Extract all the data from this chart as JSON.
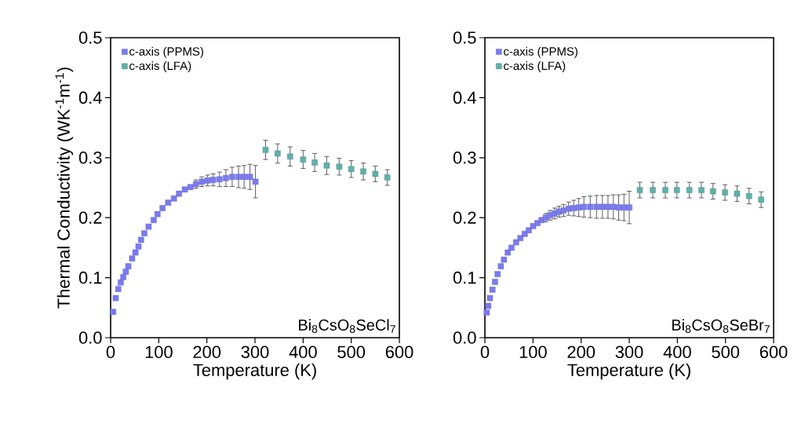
{
  "chart_data": [
    {
      "type": "scatter",
      "xlabel": "Temperature (K)",
      "ylabel": "Thermal Conductivity (WK$^{-1}$m$^{-1}$)",
      "xlim": [
        0,
        600
      ],
      "ylim": [
        0,
        0.5
      ],
      "xticks": [
        0,
        100,
        200,
        300,
        400,
        500,
        600
      ],
      "yticks": [
        {
          "value": 0,
          "label": "0.0"
        },
        0.1,
        0.2,
        0.3,
        0.4,
        0.5
      ],
      "marker": "square",
      "legend": "top left",
      "annotations": [
        "Bi$_{8}$CsO$_{8}$SeCl$_{7}$"
      ],
      "series": [
        {
          "name": "c-axis (PPMS)",
          "color": "#7b7bf0",
          "x": [
            5.3,
            10.5,
            15.8,
            21,
            26.3,
            31.6,
            36.8,
            44.7,
            51.6,
            57.9,
            63.2,
            70,
            78.9,
            89.5,
            97.4,
            107.9,
            119.5,
            131.6,
            142.1,
            154.2,
            165.8,
            177.4,
            189.5,
            201.6,
            213.2,
            226.3,
            239.5,
            252.6,
            265.8,
            277.4,
            289.5,
            301
          ],
          "values": [
            0.043,
            0.066,
            0.081,
            0.092,
            0.101,
            0.11,
            0.119,
            0.132,
            0.142,
            0.152,
            0.163,
            0.174,
            0.185,
            0.196,
            0.206,
            0.216,
            0.225,
            0.232,
            0.24,
            0.247,
            0.251,
            0.256,
            0.26,
            0.262,
            0.263,
            0.264,
            0.266,
            0.268,
            0.268,
            0.268,
            0.268,
            0.26
          ],
          "errors": [
            null,
            null,
            null,
            null,
            null,
            null,
            null,
            null,
            null,
            null,
            null,
            null,
            null,
            null,
            null,
            null,
            null,
            null,
            null,
            null,
            null,
            0.007,
            0.008,
            0.009,
            0.01,
            0.012,
            0.014,
            0.016,
            0.018,
            0.019,
            0.021,
            0.027
          ]
        },
        {
          "name": "c-axis (LFA)",
          "color": "#5fb0aa",
          "x": [
            322,
            347,
            373,
            400,
            424,
            449,
            475,
            500,
            525,
            550,
            575
          ],
          "values": [
            0.313,
            0.307,
            0.302,
            0.297,
            0.292,
            0.287,
            0.285,
            0.281,
            0.277,
            0.273,
            0.267
          ],
          "errors": [
            0.016,
            0.016,
            0.016,
            0.015,
            0.015,
            0.015,
            0.014,
            0.014,
            0.014,
            0.013,
            0.013
          ]
        }
      ]
    },
    {
      "type": "scatter",
      "xlabel": "Temperature (K)",
      "xlim": [
        0,
        600
      ],
      "ylim": [
        0,
        0.5
      ],
      "xticks": [
        0,
        100,
        200,
        300,
        400,
        500,
        600
      ],
      "yticks": [
        {
          "value": 0,
          "label": "0.0"
        },
        0.1,
        0.2,
        0.3,
        0.4,
        0.5
      ],
      "marker": "square",
      "legend": "top left",
      "annotations": [
        "Bi$_{8}$CsO$_{8}$SeBr$_{7}$"
      ],
      "series": [
        {
          "name": "c-axis (PPMS)",
          "color": "#7b7bf0",
          "x": [
            3.7,
            6.9,
            10.5,
            15.8,
            21.1,
            26.4,
            33.2,
            39.6,
            47.5,
            55.4,
            64.9,
            73.8,
            82.8,
            91.2,
            100.2,
            109.2,
            117.6,
            126.6,
            135.5,
            145,
            154,
            163.5,
            174,
            184.6,
            195.1,
            205.7,
            218.9,
            232,
            244.2,
            255.8,
            267,
            278,
            289,
            300
          ],
          "values": [
            0.042,
            0.053,
            0.066,
            0.08,
            0.093,
            0.106,
            0.119,
            0.13,
            0.142,
            0.15,
            0.159,
            0.166,
            0.173,
            0.179,
            0.186,
            0.191,
            0.196,
            0.2,
            0.204,
            0.207,
            0.21,
            0.212,
            0.215,
            0.216,
            0.217,
            0.218,
            0.218,
            0.218,
            0.218,
            0.218,
            0.218,
            0.217,
            0.217,
            0.217
          ],
          "errors": [
            null,
            null,
            null,
            null,
            null,
            null,
            null,
            null,
            null,
            null,
            null,
            null,
            null,
            null,
            null,
            null,
            null,
            0.007,
            0.008,
            0.009,
            0.009,
            0.01,
            0.011,
            0.013,
            0.015,
            0.017,
            0.018,
            0.019,
            0.019,
            0.019,
            0.02,
            0.021,
            0.022,
            0.027
          ]
        },
        {
          "name": "c-axis (LFA)",
          "color": "#5fb0aa",
          "x": [
            322,
            349,
            375,
            399,
            425,
            450,
            474,
            499,
            524,
            549,
            574
          ],
          "values": [
            0.246,
            0.246,
            0.246,
            0.246,
            0.246,
            0.246,
            0.244,
            0.242,
            0.24,
            0.236,
            0.23
          ],
          "errors": [
            0.013,
            0.013,
            0.013,
            0.013,
            0.013,
            0.013,
            0.013,
            0.013,
            0.013,
            0.013,
            0.013
          ]
        }
      ]
    }
  ]
}
